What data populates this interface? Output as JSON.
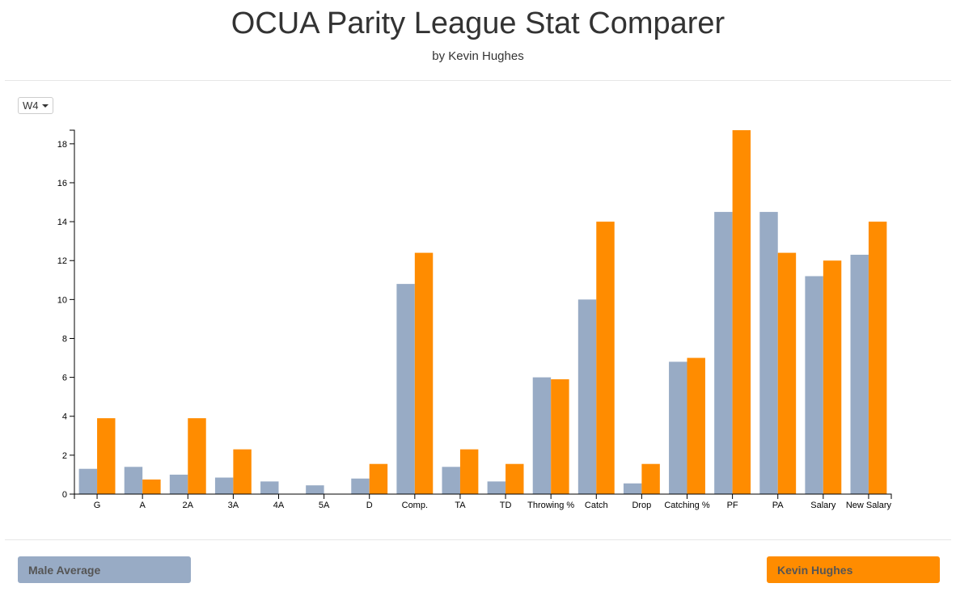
{
  "header": {
    "title": "OCUA Parity League Stat Comparer",
    "subtitle": "by Kevin Hughes"
  },
  "week_select": {
    "value": "W4"
  },
  "legend": {
    "left": {
      "label": "Male Average",
      "color": "#98abc5"
    },
    "right": {
      "label": "Kevin Hughes",
      "color": "#ff8c00"
    }
  },
  "chart_data": {
    "type": "bar",
    "categories": [
      "G",
      "A",
      "2A",
      "3A",
      "4A",
      "5A",
      "D",
      "Comp.",
      "TA",
      "TD",
      "Throwing %",
      "Catch",
      "Drop",
      "Catching %",
      "PF",
      "PA",
      "Salary",
      "New Salary"
    ],
    "series": [
      {
        "name": "Male Average",
        "color": "#98abc5",
        "values": [
          1.3,
          1.4,
          1.0,
          0.85,
          0.65,
          0.45,
          0.8,
          10.8,
          1.4,
          0.65,
          6.0,
          10.0,
          0.55,
          6.8,
          14.5,
          14.5,
          11.2,
          12.3
        ]
      },
      {
        "name": "Kevin Hughes",
        "color": "#ff8c00",
        "values": [
          3.9,
          0.75,
          3.9,
          2.3,
          0,
          0,
          1.55,
          12.4,
          2.3,
          1.55,
          5.9,
          14.0,
          1.55,
          7.0,
          18.7,
          12.4,
          12.0,
          14.0
        ]
      }
    ],
    "yticks": [
      0,
      2,
      4,
      6,
      8,
      10,
      12,
      14,
      16,
      18
    ],
    "ylim": [
      0,
      18.7
    ],
    "grid": false,
    "xlabel": "",
    "ylabel": ""
  }
}
